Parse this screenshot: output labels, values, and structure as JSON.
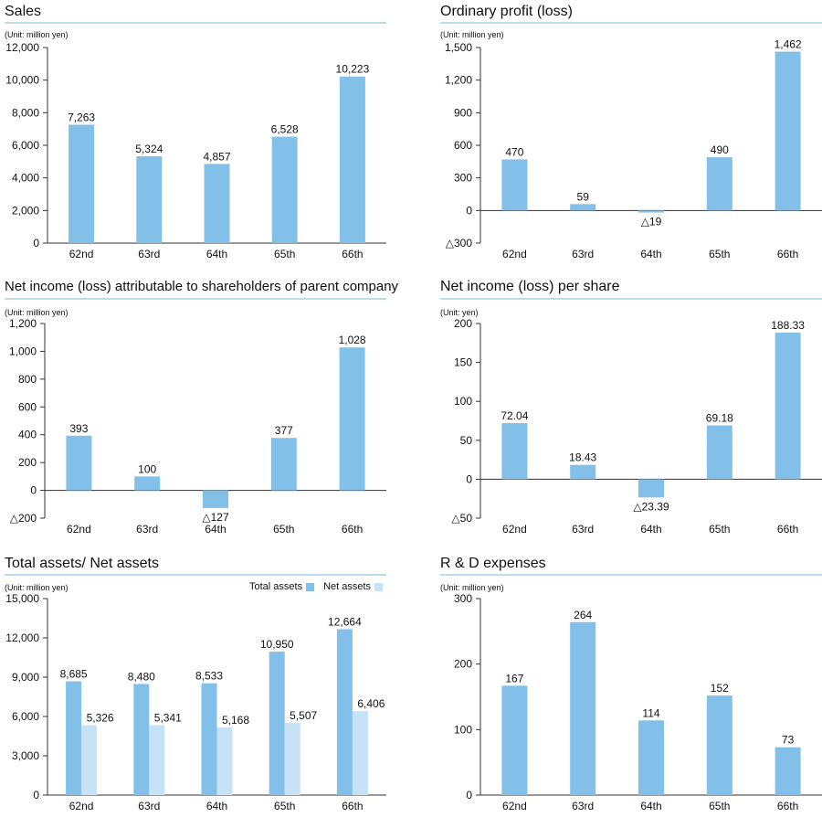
{
  "colors": {
    "primary": "#82c0ea",
    "secondary": "#c5e2f7",
    "axis": "#333333",
    "rule": "#b9dcef"
  },
  "chart_data": [
    {
      "type": "bar",
      "title": "Sales",
      "unit": "(Unit: million yen)",
      "categories": [
        "62nd",
        "63rd",
        "64th",
        "65th",
        "66th"
      ],
      "series": [
        {
          "name": "Sales",
          "values": [
            7263,
            5324,
            4857,
            6528,
            10223
          ],
          "labels": [
            "7,263",
            "5,324",
            "4,857",
            "6,528",
            "10,223"
          ]
        }
      ],
      "ylim": [
        0,
        12000
      ],
      "yticks": [
        0,
        2000,
        4000,
        6000,
        8000,
        10000,
        12000
      ],
      "ytick_labels": [
        "0",
        "2,000",
        "4,000",
        "6,000",
        "8,000",
        "10,000",
        "12,000"
      ]
    },
    {
      "type": "bar",
      "title": "Ordinary profit (loss)",
      "unit": "(Unit: million yen)",
      "categories": [
        "62nd",
        "63rd",
        "64th",
        "65th",
        "66th"
      ],
      "series": [
        {
          "name": "Ordinary profit",
          "values": [
            470,
            59,
            -19,
            490,
            1462
          ],
          "labels": [
            "470",
            "59",
            "△19",
            "490",
            "1,462"
          ]
        }
      ],
      "ylim": [
        -300,
        1500
      ],
      "yticks": [
        -300,
        0,
        300,
        600,
        900,
        1200,
        1500
      ],
      "ytick_labels": [
        "△300",
        "0",
        "300",
        "600",
        "900",
        "1,200",
        "1,500"
      ]
    },
    {
      "type": "bar",
      "title": "Net income (loss) attributable to shareholders of parent company",
      "unit": "(Unit: million yen)",
      "categories": [
        "62nd",
        "63rd",
        "64th",
        "65th",
        "66th"
      ],
      "series": [
        {
          "name": "Net income",
          "values": [
            393,
            100,
            -127,
            377,
            1028
          ],
          "labels": [
            "393",
            "100",
            "△127",
            "377",
            "1,028"
          ]
        }
      ],
      "ylim": [
        -200,
        1200
      ],
      "yticks": [
        -200,
        0,
        200,
        400,
        600,
        800,
        1000,
        1200
      ],
      "ytick_labels": [
        "△200",
        "0",
        "200",
        "400",
        "600",
        "800",
        "1,000",
        "1,200"
      ]
    },
    {
      "type": "bar",
      "title": "Net income (loss) per share",
      "unit": "(Unit: yen)",
      "categories": [
        "62nd",
        "63rd",
        "64th",
        "65th",
        "66th"
      ],
      "series": [
        {
          "name": "Net income per share",
          "values": [
            72.04,
            18.43,
            -23.39,
            69.18,
            188.33
          ],
          "labels": [
            "72.04",
            "18.43",
            "△23.39",
            "69.18",
            "188.33"
          ]
        }
      ],
      "ylim": [
        -50,
        200
      ],
      "yticks": [
        -50,
        0,
        50,
        100,
        150,
        200
      ],
      "ytick_labels": [
        "△50",
        "0",
        "50",
        "100",
        "150",
        "200"
      ]
    },
    {
      "type": "bar",
      "title": "Total assets/ Net assets",
      "unit": "(Unit: million yen)",
      "categories": [
        "62nd",
        "63rd",
        "64th",
        "65th",
        "66th"
      ],
      "series": [
        {
          "name": "Total assets",
          "values": [
            8685,
            8480,
            8533,
            10950,
            12664
          ],
          "labels": [
            "8,685",
            "8,480",
            "8,533",
            "10,950",
            "12,664"
          ]
        },
        {
          "name": "Net assets",
          "values": [
            5326,
            5341,
            5168,
            5507,
            6406
          ],
          "labels": [
            "5,326",
            "5,341",
            "5,168",
            "5,507",
            "6,406"
          ]
        }
      ],
      "legend": [
        "Total assets",
        "Net assets"
      ],
      "ylim": [
        0,
        15000
      ],
      "yticks": [
        0,
        3000,
        6000,
        9000,
        12000,
        15000
      ],
      "ytick_labels": [
        "0",
        "3,000",
        "6,000",
        "9,000",
        "12,000",
        "15,000"
      ]
    },
    {
      "type": "bar",
      "title": "R & D expenses",
      "unit": "(Unit: million yen)",
      "categories": [
        "62nd",
        "63rd",
        "64th",
        "65th",
        "66th"
      ],
      "series": [
        {
          "name": "R & D expenses",
          "values": [
            167,
            264,
            114,
            152,
            73
          ],
          "labels": [
            "167",
            "264",
            "114",
            "152",
            "73"
          ]
        }
      ],
      "ylim": [
        0,
        300
      ],
      "yticks": [
        0,
        100,
        200,
        300
      ],
      "ytick_labels": [
        "0",
        "100",
        "200",
        "300"
      ]
    }
  ]
}
